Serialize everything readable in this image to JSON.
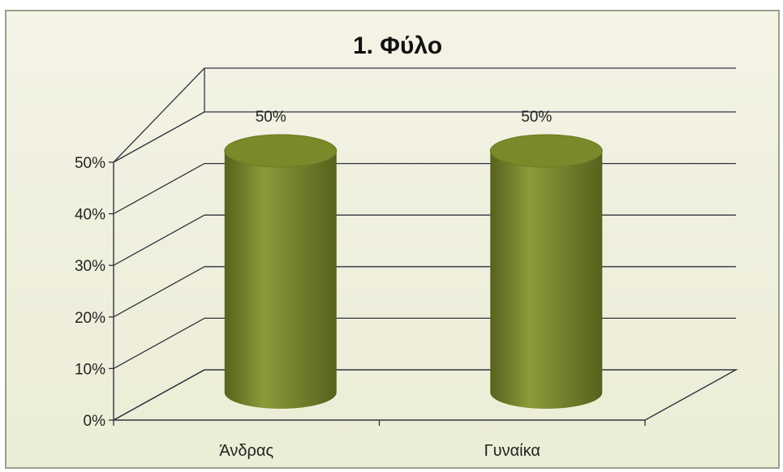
{
  "chart_data": {
    "type": "bar",
    "style": "3d-cylinder",
    "title": "1. Φύλο",
    "categories": [
      "Άνδρας",
      "Γυναίκα"
    ],
    "values": [
      50,
      50
    ],
    "data_labels": [
      "50%",
      "50%"
    ],
    "ylim": [
      0,
      50
    ],
    "yticks": [
      0,
      10,
      20,
      30,
      40,
      50
    ],
    "ytick_labels": [
      "0%",
      "10%",
      "20%",
      "30%",
      "40%",
      "50%"
    ],
    "grid": true,
    "legend": "none",
    "colors": {
      "bar": "#8c9a3a",
      "bar_dark": "#56621c",
      "bar_top": "#7a8a2a",
      "grid": "#2f3440",
      "background": "#f0f0df"
    }
  }
}
